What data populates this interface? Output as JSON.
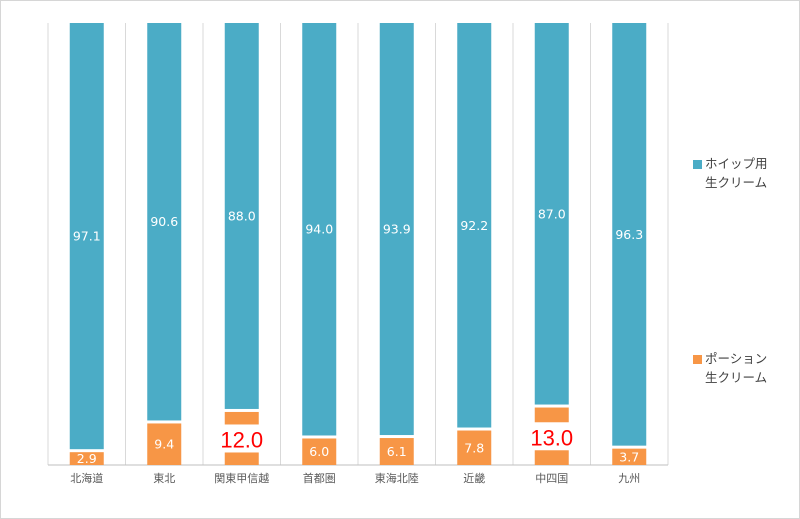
{
  "chart_data": {
    "type": "bar",
    "stacked": true,
    "orientation": "vertical",
    "normalized_percent": true,
    "categories": [
      "北海道",
      "東北",
      "関東甲信越",
      "首都圏",
      "東海北陸",
      "近畿",
      "中四国",
      "九州"
    ],
    "series": [
      {
        "name": "ホイップ用\n生クリーム",
        "color": "#4BACC6",
        "values": [
          97.1,
          90.6,
          88.0,
          94.0,
          93.9,
          92.2,
          87.0,
          96.3
        ],
        "labels": [
          "97.1",
          "90.6",
          "88.0",
          "94.0",
          "93.9",
          "92.2",
          "87.0",
          "96.3"
        ]
      },
      {
        "name": "ポーション\n生クリーム",
        "color": "#F79646",
        "values": [
          2.9,
          9.4,
          12.0,
          6.0,
          6.1,
          7.8,
          13.0,
          3.7
        ],
        "labels": [
          "2.9",
          "9.4",
          "12.0",
          "6.0",
          "6.1",
          "7.8",
          "13.0",
          "3.7"
        ]
      }
    ],
    "highlighted_labels": [
      {
        "category": "関東甲信越",
        "series": "ポーション\n生クリーム",
        "color": "#FF0000"
      },
      {
        "category": "中四国",
        "series": "ポーション\n生クリーム",
        "color": "#FF0000"
      }
    ],
    "ylim": [
      0,
      100
    ],
    "grid": "vertical separators",
    "legend_position": "right"
  }
}
